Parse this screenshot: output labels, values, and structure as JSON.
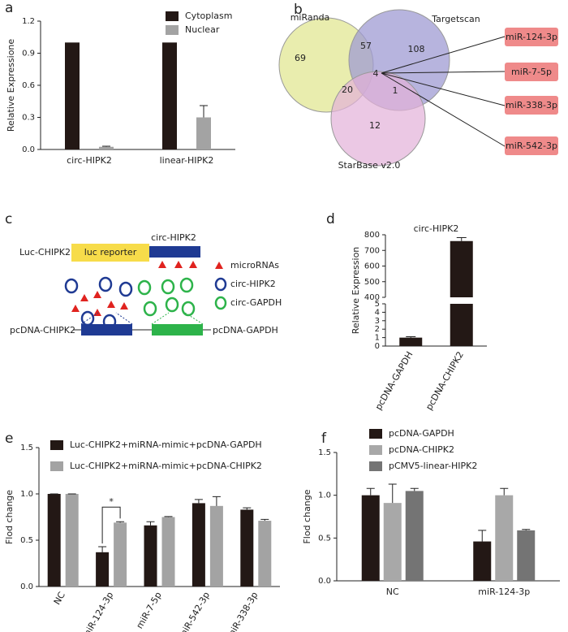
{
  "chart_data": [
    {
      "type": "bar",
      "panel": "a",
      "ylabel": "Relative Expressione",
      "categories": [
        "circ-HIPK2",
        "linear-HIPK2"
      ],
      "series": [
        {
          "name": "Cytoplasm",
          "color": "#231815",
          "values": [
            1,
            1
          ]
        },
        {
          "name": "Nuclear",
          "color": "#a3a3a3",
          "values": [
            0.025,
            0.3
          ],
          "errors": [
            0.005,
            0.11
          ]
        }
      ],
      "ylim": [
        0,
        1.2
      ],
      "yticks": [
        {
          "value": 0,
          "label": "0.0"
        },
        0.3,
        0.6,
        0.9,
        1.2
      ]
    },
    {
      "type": "broken-bar",
      "panel": "d",
      "title": "circ-HIPK2",
      "ylabel": "Relative Expression",
      "categories": [
        "pcDNA-GAPDH",
        "pcDNA-CHIPK2"
      ],
      "series": [
        {
          "color": "#231815",
          "values": [
            1,
            760
          ],
          "errors": [
            0.1,
            22
          ]
        }
      ],
      "ylim_lower": [
        0,
        5
      ],
      "yticks_lower": [
        0,
        1,
        2,
        3,
        4,
        5
      ],
      "ylim_upper": [
        400,
        800
      ],
      "yticks_upper": [
        400,
        500,
        600,
        700,
        800
      ]
    },
    {
      "type": "bar",
      "panel": "e",
      "ylabel": "Flod change",
      "annotation": "*",
      "categories": [
        "NC",
        "miR-124-3p",
        "miR-7-5p",
        "miR-542-3p",
        "miR-338-3p"
      ],
      "series": [
        {
          "name": "Luc-CHIPK2+miRNA-mimic+pcDNA-GAPDH",
          "color": "#231815",
          "values": [
            1.0,
            0.37,
            0.66,
            0.9,
            0.83
          ],
          "errors": [
            0,
            0.06,
            0.04,
            0.04,
            0.02
          ]
        },
        {
          "name": "Luc-CHIPK2+miRNA-mimic+pcDNA-CHIPK2",
          "color": "#a3a3a3",
          "values": [
            1.0,
            0.69,
            0.75,
            0.87,
            0.71
          ],
          "errors": [
            0,
            0.01,
            0.005,
            0.1,
            0.015
          ]
        }
      ],
      "ylim": [
        0,
        1.5
      ],
      "yticks": [
        {
          "value": 0,
          "label": "0.0"
        },
        0.5,
        {
          "value": 1,
          "label": "1.0"
        },
        1.5
      ]
    },
    {
      "type": "bar",
      "panel": "f",
      "ylabel": "Flod change",
      "categories": [
        "NC",
        "miR-124-3p"
      ],
      "series": [
        {
          "name": "pcDNA-GAPDH",
          "color": "#231815",
          "values": [
            1.0,
            0.46
          ],
          "errors": [
            0.08,
            0.13
          ]
        },
        {
          "name": "pcDNA-CHIPK2",
          "color": "#a8a8a8",
          "values": [
            0.91,
            1.0
          ],
          "errors": [
            0.22,
            0.08
          ]
        },
        {
          "name": "pCMV5-linear-HIPK2",
          "color": "#747474",
          "values": [
            1.05,
            0.59
          ],
          "errors": [
            0.03,
            0.01
          ]
        }
      ],
      "ylim": [
        0,
        1.5
      ],
      "yticks": [
        {
          "value": 0,
          "label": "0.0"
        },
        0.5,
        {
          "value": 1,
          "label": "1.0"
        },
        1.5
      ]
    }
  ],
  "venn": {
    "panel": "b",
    "sets": [
      "miRanda",
      "Targetscan",
      "StarBase v2.0"
    ],
    "counts": [
      "69",
      "57",
      "108",
      "20",
      "4",
      "1",
      "12"
    ],
    "targets": [
      "miR-124-3p",
      "miR-7-5p",
      "miR-338-3p",
      "miR-542-3p"
    ]
  },
  "construct": {
    "panel": "c",
    "reporter_name": "Luc-CHIPK2",
    "reporter": "luc reporter",
    "insert": "circ-HIPK2",
    "legend": [
      "microRNAs",
      "circ-HIPK2",
      "circ-GAPDH"
    ],
    "plasmids": [
      "pcDNA-CHIPK2",
      "pcDNA-GAPDH"
    ]
  }
}
